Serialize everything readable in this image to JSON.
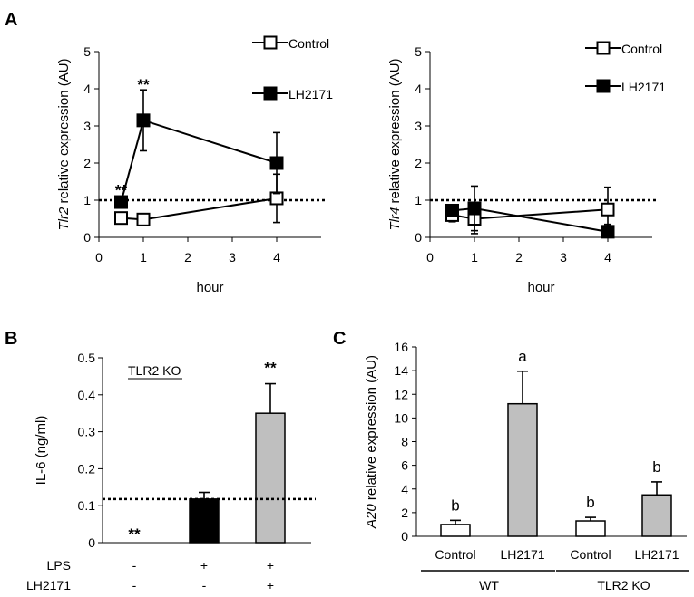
{
  "chart_data": [
    {
      "panel": "A",
      "type": "line",
      "ylabel_italic": "Tlr2",
      "ylabel_rest": " relative expression (AU)",
      "xlabel": "hour",
      "xlim": [
        0,
        5
      ],
      "ylim": [
        0,
        5
      ],
      "xticks": [
        0,
        1,
        2,
        3,
        4
      ],
      "yticks": [
        0,
        1,
        2,
        3,
        4,
        5
      ],
      "reference_line": 1,
      "series": [
        {
          "name": "Control",
          "marker": "open-square",
          "x": [
            0.5,
            1,
            4
          ],
          "y": [
            0.52,
            0.48,
            1.05
          ],
          "err": [
            0.1,
            0.12,
            0.65
          ]
        },
        {
          "name": "LH2171",
          "marker": "filled-square",
          "x": [
            0.5,
            1,
            4
          ],
          "y": [
            0.95,
            3.15,
            2.0
          ],
          "err": [
            0.12,
            0.82,
            0.82
          ]
        }
      ],
      "annotations": [
        {
          "text": "**",
          "x": 0.5,
          "y": 1.35
        },
        {
          "text": "**",
          "x": 1,
          "y": 4.2
        }
      ]
    },
    {
      "panel": "",
      "type": "line",
      "ylabel_italic": "Tlr4",
      "ylabel_rest": " relative expression (AU)",
      "xlabel": "hour",
      "xlim": [
        0,
        5
      ],
      "ylim": [
        0,
        5
      ],
      "xticks": [
        0,
        1,
        2,
        3,
        4
      ],
      "yticks": [
        0,
        1,
        2,
        3,
        4,
        5
      ],
      "reference_line": 1,
      "series": [
        {
          "name": "Control",
          "marker": "open-square",
          "x": [
            0.5,
            1,
            4
          ],
          "y": [
            0.6,
            0.5,
            0.75
          ],
          "err": [
            0.18,
            0.4,
            0.6
          ]
        },
        {
          "name": "LH2171",
          "marker": "filled-square",
          "x": [
            0.5,
            1,
            4
          ],
          "y": [
            0.72,
            0.78,
            0.15
          ],
          "err": [
            0.1,
            0.6,
            0.2
          ]
        }
      ],
      "annotations": []
    },
    {
      "panel": "B",
      "type": "bar",
      "ylabel": "IL-6 (ng/ml)",
      "ylim": [
        0,
        0.5
      ],
      "yticks": [
        "0",
        "0.1",
        "0.2",
        "0.3",
        "0.4",
        "0.5"
      ],
      "inset_title": "TLR2 KO",
      "reference_line": 0.118,
      "row_labels": [
        "LPS",
        "LH2171"
      ],
      "categories": [
        {
          "lps": "-",
          "lh2171": "-",
          "value": 0,
          "err": 0,
          "color": "#ffffff",
          "annotation": "**"
        },
        {
          "lps": "+",
          "lh2171": "-",
          "value": 0.118,
          "err": 0.018,
          "color": "#000000",
          "annotation": ""
        },
        {
          "lps": "+",
          "lh2171": "+",
          "value": 0.35,
          "err": 0.08,
          "color": "#bfbfbf",
          "annotation": "**"
        }
      ]
    },
    {
      "panel": "C",
      "type": "bar",
      "ylabel_italic": "A20",
      "ylabel_rest": " relative expression (AU)",
      "ylim": [
        0,
        16
      ],
      "yticks": [
        0,
        2,
        4,
        6,
        8,
        10,
        12,
        14,
        16
      ],
      "categories": [
        "Control",
        "LH2171",
        "Control",
        "LH2171"
      ],
      "values": [
        1.0,
        11.2,
        1.3,
        3.5
      ],
      "err": [
        0.35,
        2.75,
        0.3,
        1.1
      ],
      "colors": [
        "#ffffff",
        "#bfbfbf",
        "#ffffff",
        "#bfbfbf"
      ],
      "letters": [
        "b",
        "a",
        "b",
        "b"
      ],
      "groups": [
        {
          "label": "WT",
          "members": [
            0,
            1
          ]
        },
        {
          "label": "TLR2 KO",
          "members": [
            2,
            3
          ]
        }
      ]
    }
  ]
}
